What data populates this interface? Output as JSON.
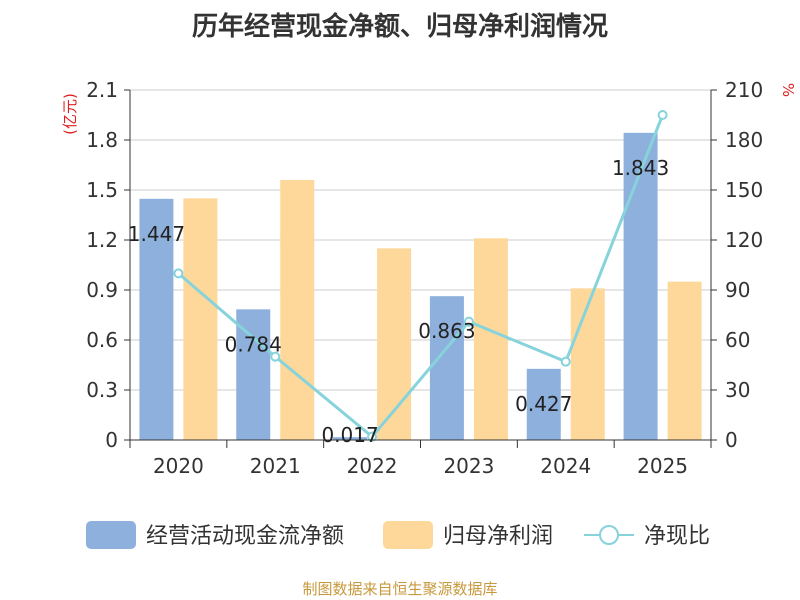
{
  "chart_data": {
    "type": "bar",
    "title": "历年经营现金净额、归母净利润情况",
    "categories": [
      "2020",
      "2021",
      "2022",
      "2023",
      "2024",
      "2025"
    ],
    "series": [
      {
        "name": "经营活动现金流净额",
        "type": "bar",
        "axis": "left",
        "color": "#8eb0dc",
        "values": [
          1.447,
          0.784,
          0.017,
          0.863,
          0.427,
          1.843
        ],
        "labels": [
          "1.447",
          "0.784",
          "0.017",
          "0.863",
          "0.427",
          "1.843"
        ]
      },
      {
        "name": "归母净利润",
        "type": "bar",
        "axis": "left",
        "color": "#fed89a",
        "values": [
          1.45,
          1.56,
          1.15,
          1.21,
          0.91,
          0.95
        ]
      },
      {
        "name": "净现比",
        "type": "line",
        "axis": "right",
        "color": "#86d3dc",
        "values": [
          100,
          50,
          2,
          71,
          47,
          195
        ]
      }
    ],
    "y_left": {
      "unit": "(亿元)",
      "ylim": [
        0,
        2.1
      ],
      "ticks": [
        "0",
        "0.3",
        "0.6",
        "0.9",
        "1.2",
        "1.5",
        "1.8",
        "2.1"
      ]
    },
    "y_right": {
      "unit": "%",
      "ylim": [
        0,
        210
      ],
      "ticks": [
        "0",
        "30",
        "60",
        "90",
        "120",
        "150",
        "180",
        "210"
      ]
    },
    "grid": true,
    "legend": "bottom",
    "source": "制图数据来自恒生聚源数据库"
  }
}
